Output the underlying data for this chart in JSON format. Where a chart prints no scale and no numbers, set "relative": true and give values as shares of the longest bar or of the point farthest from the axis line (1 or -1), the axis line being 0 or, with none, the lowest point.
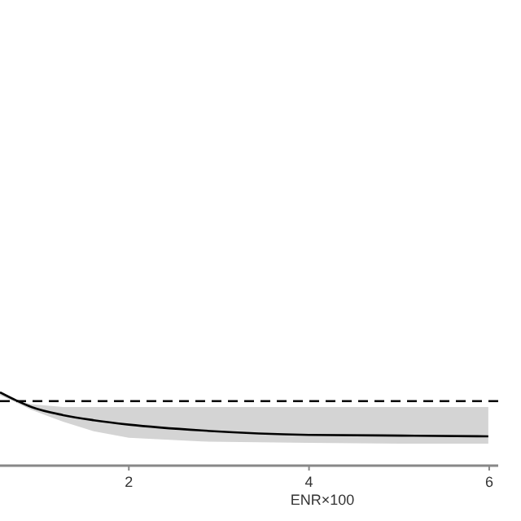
{
  "chart_data": {
    "type": "line",
    "xlabel": "ENR×100",
    "relative": true,
    "xlim": [
      0.57,
      6.1
    ],
    "xticks": [
      2,
      4,
      6
    ],
    "series": [
      {
        "color": "#000000",
        "x": [
          0.57,
          0.75,
          0.92,
          1.27,
          1.61,
          2,
          2.81,
          4,
          5.03,
          5.99
        ],
        "values": [
          1,
          0.89,
          0.8,
          0.69,
          0.62,
          0.56,
          0.48,
          0.42,
          0.41,
          0.4
        ],
        "lower": [
          0.96,
          0.86,
          0.76,
          0.6,
          0.47,
          0.38,
          0.33,
          0.31,
          0.3,
          0.3
        ],
        "upper": [
          0.98,
          0.89,
          0.84,
          0.8,
          0.8,
          0.8,
          0.8,
          0.8,
          0.8,
          0.8
        ]
      }
    ],
    "ref_lines": [
      {
        "axis": "y",
        "value": 0.88,
        "color": "#000000",
        "line_style": "dashed"
      }
    ],
    "line_style": "solid",
    "marker": "none"
  }
}
